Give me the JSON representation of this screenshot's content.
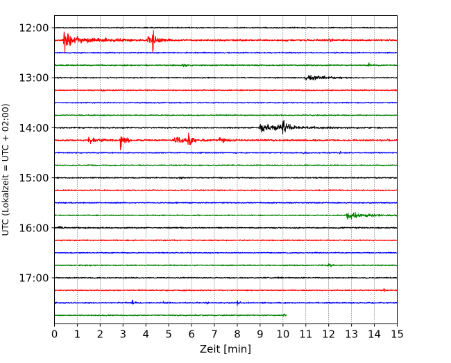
{
  "chart_data": {
    "type": "line",
    "title": "",
    "xlabel": "Zeit  [min]",
    "ylabel": "UTC (Lokalzeit = UTC + 02:00)",
    "xlim": [
      0,
      15
    ],
    "x_ticks": [
      0,
      1,
      2,
      3,
      4,
      5,
      6,
      7,
      8,
      9,
      10,
      11,
      12,
      13,
      14,
      15
    ],
    "x_tick_labels": [
      "0",
      "1",
      "2",
      "3",
      "4",
      "5",
      "6",
      "7",
      "8",
      "9",
      "10",
      "11",
      "12",
      "13",
      "14",
      "15"
    ],
    "y_tick_labels": [
      "12:00",
      "13:00",
      "14:00",
      "15:00",
      "16:00",
      "17:00"
    ],
    "y_ticks_row_index": [
      0,
      4,
      8,
      12,
      16,
      20
    ],
    "rows_per_hour": 4,
    "minutes_per_row": 15,
    "vertical_grid": "dotted",
    "colors": [
      "#000000",
      "#ff0000",
      "#0000ff",
      "#008000"
    ],
    "rows": [
      {
        "start": "12:00",
        "color": "#000000",
        "amplitude": 0.12,
        "end_min": 15,
        "events": []
      },
      {
        "start": "12:15",
        "color": "#ff0000",
        "amplitude": 0.2,
        "end_min": 15,
        "events": [
          {
            "t": 0.45,
            "amp": 2.2,
            "dur": 0.3
          },
          {
            "t": 0.4,
            "amp": 0.85,
            "dur": 4.2
          },
          {
            "t": 4.3,
            "amp": 1.7,
            "dur": 0.25
          },
          {
            "t": 4.1,
            "amp": 0.95,
            "dur": 1.2
          },
          {
            "t": 12.05,
            "amp": 0.7,
            "dur": 0.15
          }
        ]
      },
      {
        "start": "12:30",
        "color": "#0000ff",
        "amplitude": 0.13,
        "end_min": 15,
        "events": []
      },
      {
        "start": "12:45",
        "color": "#008000",
        "amplitude": 0.13,
        "end_min": 15,
        "events": [
          {
            "t": 5.6,
            "amp": 0.3,
            "dur": 0.6
          },
          {
            "t": 13.75,
            "amp": 0.5,
            "dur": 0.15
          }
        ]
      },
      {
        "start": "13:00",
        "color": "#000000",
        "amplitude": 0.12,
        "end_min": 15,
        "events": [
          {
            "t": 11.0,
            "amp": 0.85,
            "dur": 2.0
          }
        ]
      },
      {
        "start": "13:15",
        "color": "#ff0000",
        "amplitude": 0.12,
        "end_min": 15,
        "events": [
          {
            "t": 2.1,
            "amp": 0.3,
            "dur": 0.2
          },
          {
            "t": 14.9,
            "amp": 0.3,
            "dur": 0.15
          }
        ]
      },
      {
        "start": "13:30",
        "color": "#0000ff",
        "amplitude": 0.12,
        "end_min": 15,
        "events": []
      },
      {
        "start": "13:45",
        "color": "#008000",
        "amplitude": 0.12,
        "end_min": 15,
        "events": []
      },
      {
        "start": "14:00",
        "color": "#000000",
        "amplitude": 0.14,
        "end_min": 15,
        "events": [
          {
            "t": 10.0,
            "amp": 2.3,
            "dur": 0.35
          },
          {
            "t": 9.0,
            "amp": 0.8,
            "dur": 4.0
          }
        ]
      },
      {
        "start": "14:15",
        "color": "#ff0000",
        "amplitude": 0.2,
        "end_min": 15,
        "events": [
          {
            "t": 1.5,
            "amp": 0.6,
            "dur": 1.2
          },
          {
            "t": 2.9,
            "amp": 2.0,
            "dur": 0.5
          },
          {
            "t": 5.85,
            "amp": 1.9,
            "dur": 0.35
          },
          {
            "t": 5.2,
            "amp": 0.6,
            "dur": 1.6
          },
          {
            "t": 7.2,
            "amp": 0.6,
            "dur": 0.8
          }
        ]
      },
      {
        "start": "14:30",
        "color": "#0000ff",
        "amplitude": 0.12,
        "end_min": 15,
        "events": [
          {
            "t": 10.9,
            "amp": 0.3,
            "dur": 0.2
          },
          {
            "t": 12.5,
            "amp": 0.3,
            "dur": 0.2
          }
        ]
      },
      {
        "start": "14:45",
        "color": "#008000",
        "amplitude": 0.12,
        "end_min": 15,
        "events": []
      },
      {
        "start": "15:00",
        "color": "#000000",
        "amplitude": 0.13,
        "end_min": 15,
        "events": [
          {
            "t": 5.5,
            "amp": 0.35,
            "dur": 0.2
          }
        ]
      },
      {
        "start": "15:15",
        "color": "#ff0000",
        "amplitude": 0.13,
        "end_min": 15,
        "events": []
      },
      {
        "start": "15:30",
        "color": "#0000ff",
        "amplitude": 0.13,
        "end_min": 15,
        "events": []
      },
      {
        "start": "15:45",
        "color": "#008000",
        "amplitude": 0.12,
        "end_min": 15,
        "events": [
          {
            "t": 12.8,
            "amp": 0.75,
            "dur": 2.2
          }
        ]
      },
      {
        "start": "16:00",
        "color": "#000000",
        "amplitude": 0.14,
        "end_min": 15,
        "events": [
          {
            "t": 0.2,
            "amp": 0.4,
            "dur": 0.3
          }
        ]
      },
      {
        "start": "16:15",
        "color": "#ff0000",
        "amplitude": 0.13,
        "end_min": 15,
        "events": []
      },
      {
        "start": "16:30",
        "color": "#0000ff",
        "amplitude": 0.12,
        "end_min": 15,
        "events": []
      },
      {
        "start": "16:45",
        "color": "#008000",
        "amplitude": 0.12,
        "end_min": 15,
        "events": [
          {
            "t": 12.0,
            "amp": 0.7,
            "dur": 0.3
          }
        ]
      },
      {
        "start": "17:00",
        "color": "#000000",
        "amplitude": 0.12,
        "end_min": 15,
        "events": [
          {
            "t": 9.8,
            "amp": 0.3,
            "dur": 0.3
          }
        ]
      },
      {
        "start": "17:15",
        "color": "#ff0000",
        "amplitude": 0.13,
        "end_min": 15,
        "events": [
          {
            "t": 14.4,
            "amp": 0.35,
            "dur": 0.3
          }
        ]
      },
      {
        "start": "17:30",
        "color": "#0000ff",
        "amplitude": 0.14,
        "end_min": 15,
        "events": [
          {
            "t": 3.4,
            "amp": 0.55,
            "dur": 0.2
          },
          {
            "t": 4.8,
            "amp": 0.3,
            "dur": 0.3
          },
          {
            "t": 6.6,
            "amp": 0.5,
            "dur": 0.2
          },
          {
            "t": 8.0,
            "amp": 0.35,
            "dur": 0.3
          }
        ]
      },
      {
        "start": "17:45",
        "color": "#008000",
        "amplitude": 0.13,
        "end_min": 10.15,
        "events": [
          {
            "t": 10.05,
            "amp": 0.55,
            "dur": 0.15
          }
        ]
      }
    ]
  }
}
